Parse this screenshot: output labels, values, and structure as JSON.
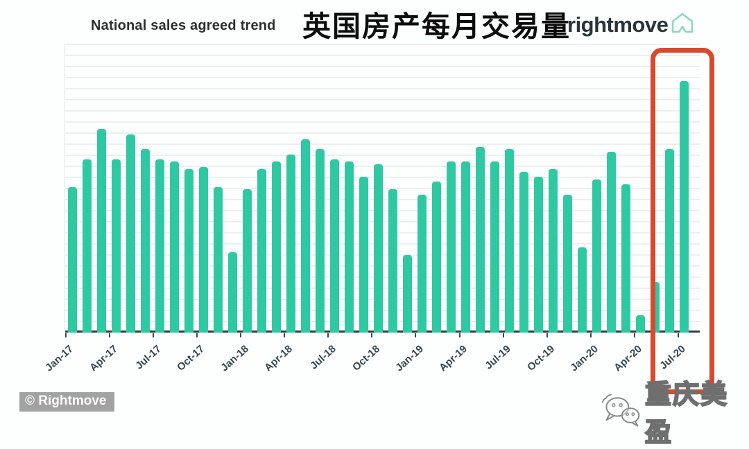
{
  "header": {
    "subtitle": "National sales agreed trend",
    "title": "英国房产每月交易量",
    "brand": "rightmove"
  },
  "chart_data": {
    "type": "bar",
    "title": "National sales agreed trend",
    "xlabel": "",
    "ylabel": "",
    "y_axis_labeled": false,
    "unit": "relative monthly sales-agreed volume index (Jul-20 peak = 100); source chart shows no y-axis numbers",
    "x": [
      "Jan-17",
      "Feb-17",
      "Mar-17",
      "Apr-17",
      "May-17",
      "Jun-17",
      "Jul-17",
      "Aug-17",
      "Sep-17",
      "Oct-17",
      "Nov-17",
      "Dec-17",
      "Jan-18",
      "Feb-18",
      "Mar-18",
      "Apr-18",
      "May-18",
      "Jun-18",
      "Jul-18",
      "Aug-18",
      "Sep-18",
      "Oct-18",
      "Nov-18",
      "Dec-18",
      "Jan-19",
      "Feb-19",
      "Mar-19",
      "Apr-19",
      "May-19",
      "Jun-19",
      "Jul-19",
      "Aug-19",
      "Sep-19",
      "Oct-19",
      "Nov-19",
      "Dec-19",
      "Jan-20",
      "Feb-20",
      "Mar-20",
      "Apr-20",
      "May-20",
      "Jun-20",
      "Jul-20"
    ],
    "values": [
      58,
      69,
      81,
      69,
      79,
      73,
      69,
      68,
      65,
      66,
      58,
      32,
      57,
      65,
      68,
      71,
      77,
      73,
      69,
      68,
      62,
      67,
      57,
      31,
      55,
      60,
      68,
      68,
      74,
      68,
      73,
      64,
      62,
      65,
      55,
      34,
      61,
      72,
      59,
      7,
      20,
      73,
      100
    ],
    "x_tick_labels": [
      "Jan-17",
      "Apr-17",
      "Jul-17",
      "Oct-17",
      "Jan-18",
      "Apr-18",
      "Jul-18",
      "Oct-18",
      "Jan-19",
      "Apr-19",
      "Jul-19",
      "Oct-19",
      "Jan-20",
      "Apr-20",
      "Jul-20"
    ],
    "ylim": [
      0,
      115
    ],
    "grid": true,
    "legend": "none",
    "bar_color": "#2ec9a2",
    "highlight": {
      "months": [
        "Jun-20",
        "Jul-20"
      ],
      "style": "red rounded rectangle outline",
      "color": "#d8492d"
    }
  },
  "footer": {
    "copyright": "© Rightmove",
    "watermark": "重庆美盈"
  },
  "colors": {
    "bar": "#2ec9a2",
    "axis": "#333d41",
    "tick_label": "#37474f",
    "grid": "#eaf0f0",
    "highlight": "#d8492d",
    "brand_icon": "#8ad9bd",
    "watermark_outline": "#6f6f6f"
  },
  "icons": [
    "rightmove-house-icon",
    "wechat-icon"
  ]
}
